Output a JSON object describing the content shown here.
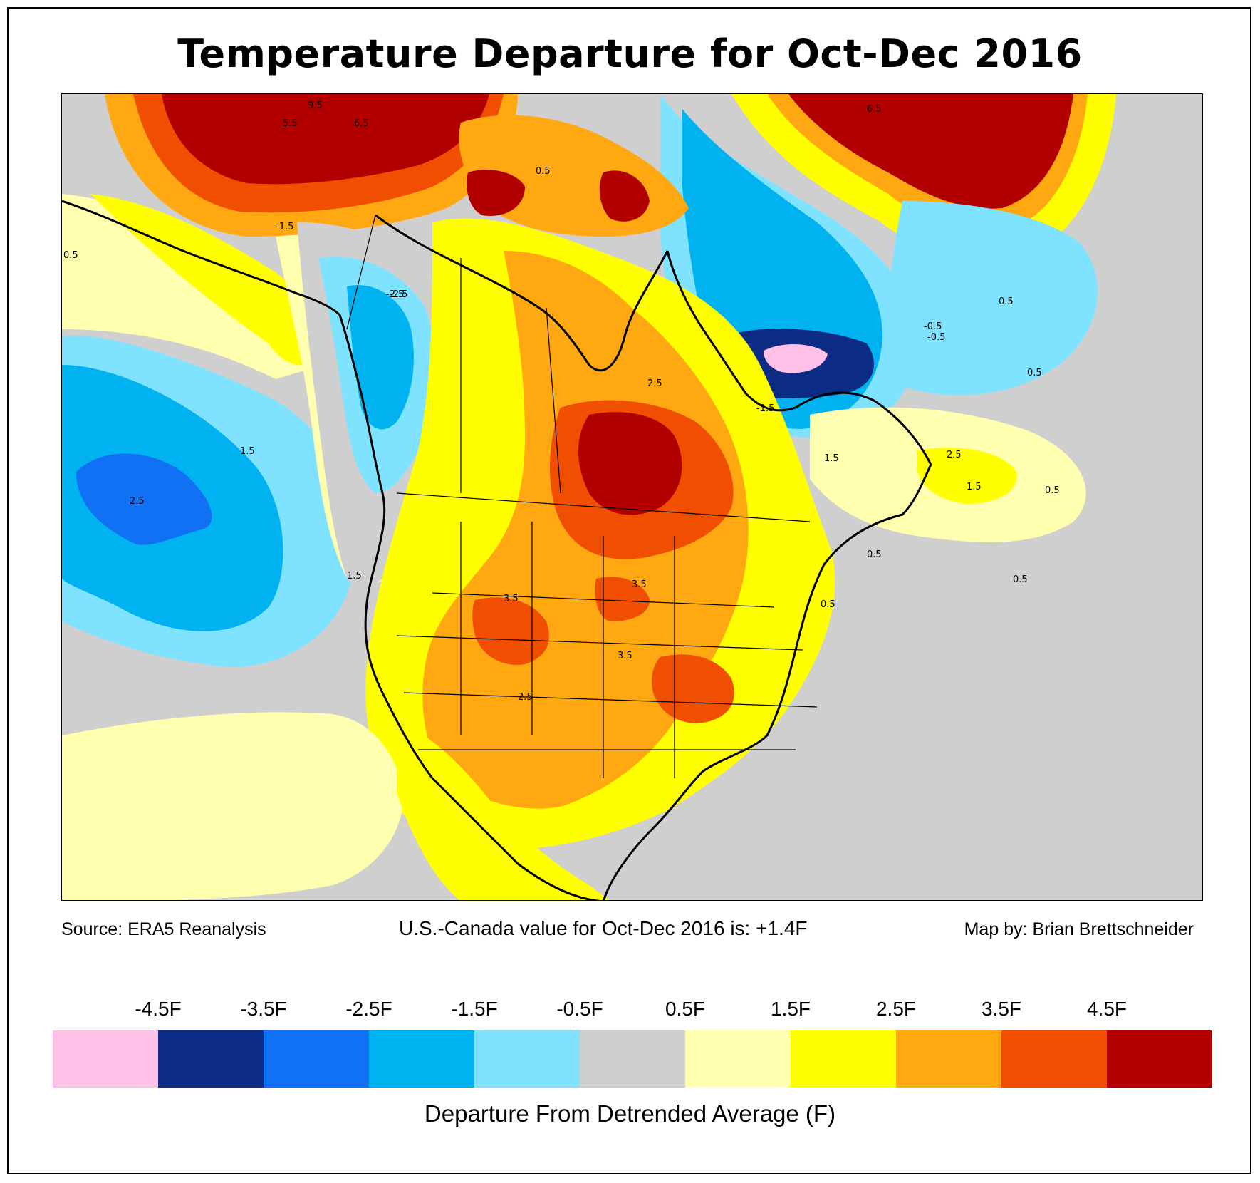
{
  "title": "Temperature Departure for Oct-Dec 2016",
  "captions": {
    "source": "Source: ERA5 Reanalysis",
    "value": "U.S.-Canada value for Oct-Dec 2016 is: +1.4F",
    "credit": "Map by: Brian Brettschneider"
  },
  "colorbar": {
    "tick_labels": [
      "-4.5F",
      "-3.5F",
      "-2.5F",
      "-1.5F",
      "-0.5F",
      "0.5F",
      "1.5F",
      "2.5F",
      "3.5F",
      "4.5F"
    ],
    "colors": [
      "#ffc0e8",
      "#0b2b85",
      "#1071f5",
      "#00b2ef",
      "#7fe3ff",
      "#cfcfcf",
      "#ffffb0",
      "#ffff00",
      "#ffa812",
      "#f04e00",
      "#b20000"
    ],
    "label": "Departure From Detrended Average (F)"
  },
  "map": {
    "contour_labels": [
      "9.5",
      "6.5",
      "5.5",
      "6.5",
      "0.5",
      "-1.5",
      "-2.5",
      "2.5",
      "1.5",
      "3.5",
      "3.5",
      "3.5",
      "2.5",
      "1.5",
      "0.5",
      "-0.5",
      "1.5",
      "2.5",
      "-1.5",
      "0.5",
      "0.5",
      "-2.5",
      "0.5",
      "1.5",
      "2.5",
      "0.5",
      "0.5",
      "0.5",
      "-0.5"
    ]
  }
}
